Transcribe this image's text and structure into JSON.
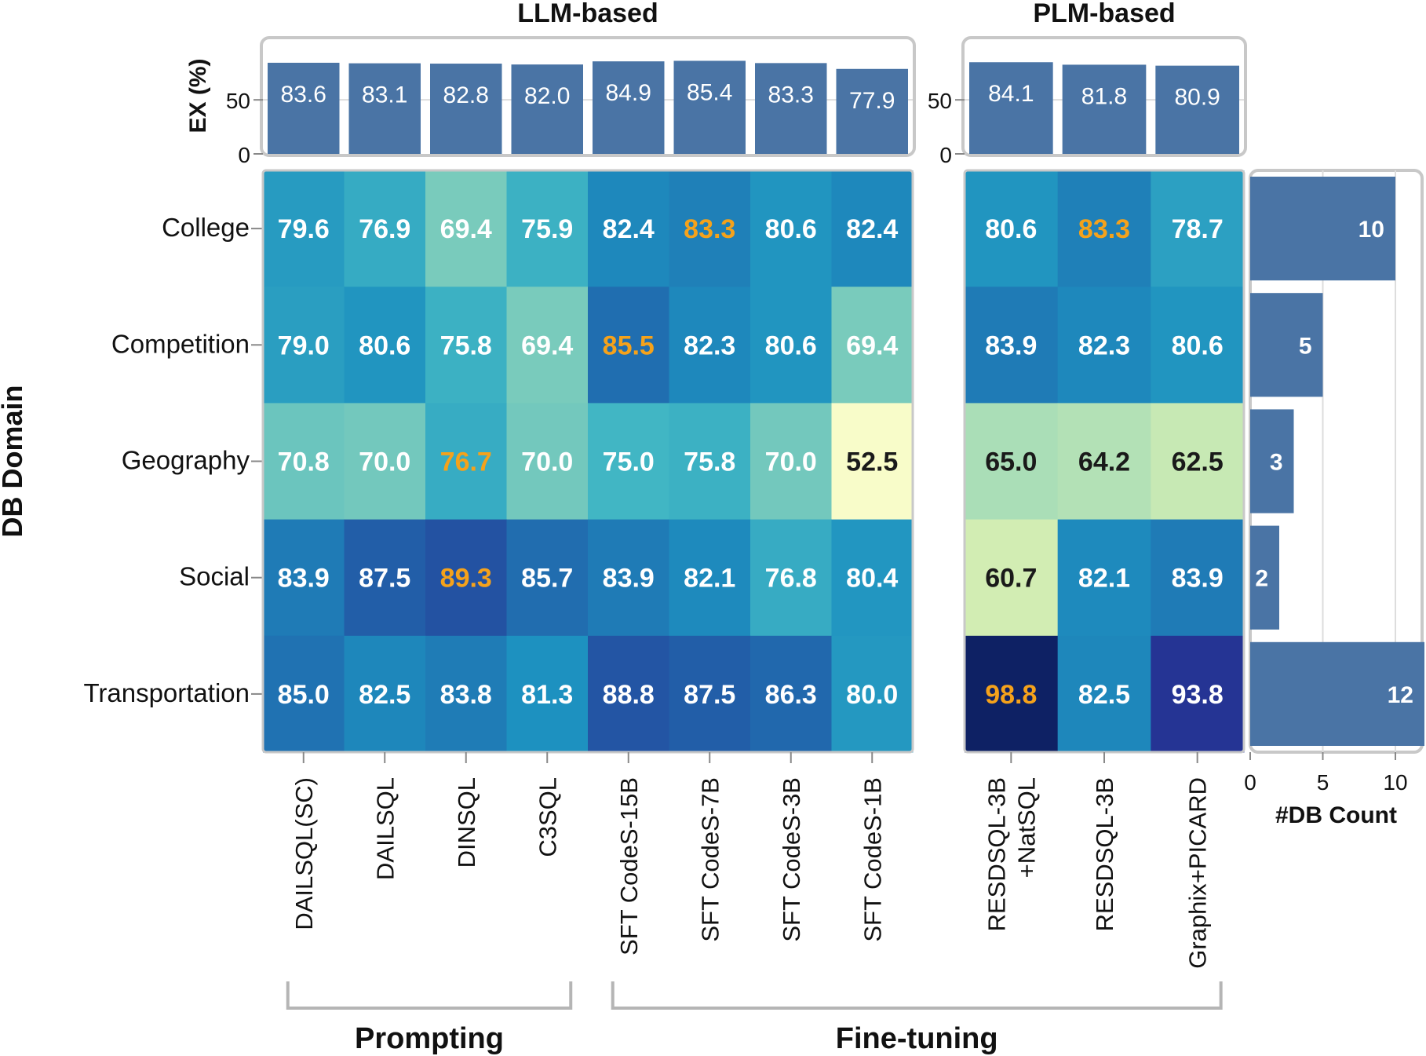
{
  "chart_data": {
    "type": "heatmap",
    "groups": [
      {
        "label": "LLM-based",
        "models": [
          "DAILSQL(SC)",
          "DAILSQL",
          "DINSQL",
          "C3SQL",
          "SFT CodeS-15B",
          "SFT CodeS-7B",
          "SFT CodeS-3B",
          "SFT CodeS-1B"
        ]
      },
      {
        "label": "PLM-based",
        "models": [
          "RESDSQL-3B +NatSQL",
          "RESDSQL-3B",
          "Graphix+PICARD"
        ]
      }
    ],
    "model_labels": [
      [
        "DAILSQL(SC)"
      ],
      [
        "DAILSQL"
      ],
      [
        "DINSQL"
      ],
      [
        "C3SQL"
      ],
      [
        "SFT CodeS-15B"
      ],
      [
        "SFT CodeS-7B"
      ],
      [
        "SFT CodeS-3B"
      ],
      [
        "SFT CodeS-1B"
      ],
      [
        "RESDSQL-3B",
        "+NatSQL"
      ],
      [
        "RESDSQL-3B"
      ],
      [
        "Graphix+PICARD"
      ]
    ],
    "rows": [
      "College",
      "Competition",
      "Geography",
      "Social",
      "Transportation"
    ],
    "values": [
      [
        79.6,
        76.9,
        69.4,
        75.9,
        82.4,
        83.3,
        80.6,
        82.4,
        80.6,
        83.3,
        78.7
      ],
      [
        79.0,
        80.6,
        75.8,
        69.4,
        85.5,
        82.3,
        80.6,
        69.4,
        83.9,
        82.3,
        80.6
      ],
      [
        70.8,
        70.0,
        76.7,
        70.0,
        75.0,
        75.8,
        70.0,
        52.5,
        65.0,
        64.2,
        62.5
      ],
      [
        83.9,
        87.5,
        89.3,
        85.7,
        83.9,
        82.1,
        76.8,
        80.4,
        60.7,
        82.1,
        83.9
      ],
      [
        85.0,
        82.5,
        83.8,
        81.3,
        88.8,
        87.5,
        86.3,
        80.0,
        98.8,
        82.5,
        93.8
      ]
    ],
    "highlighted_best": [
      {
        "row": "College",
        "col": 5
      },
      {
        "row": "College",
        "col": 9
      },
      {
        "row": "Competition",
        "col": 4
      },
      {
        "row": "Geography",
        "col": 2
      },
      {
        "row": "Social",
        "col": 2
      },
      {
        "row": "Transportation",
        "col": 8
      }
    ],
    "ex": {
      "axis_label": "EX (%)",
      "ticks": [
        0,
        50
      ],
      "values": [
        83.6,
        83.1,
        82.8,
        82.0,
        84.9,
        85.4,
        83.3,
        77.9,
        84.1,
        81.8,
        80.9
      ]
    },
    "db_count": {
      "axis_label": "#DB Count",
      "ticks": [
        0,
        5,
        10
      ],
      "values": [
        10,
        5,
        3,
        2,
        12
      ]
    },
    "ylabel": "DB Domain",
    "brackets": [
      {
        "label": "Prompting",
        "from_col": 0,
        "to_col": 3
      },
      {
        "label": "Fine-tuning",
        "from_col": 4,
        "to_col": 10
      }
    ],
    "colors": {
      "bar": "#4a74a5",
      "highlight_text": "#f5a21b",
      "light_text": "#ffffff",
      "dark_text": "#1a1a1a",
      "frame": "#c8c8c8",
      "colormap": "YlGnBu",
      "colormap_range": [
        50,
        100
      ]
    }
  }
}
